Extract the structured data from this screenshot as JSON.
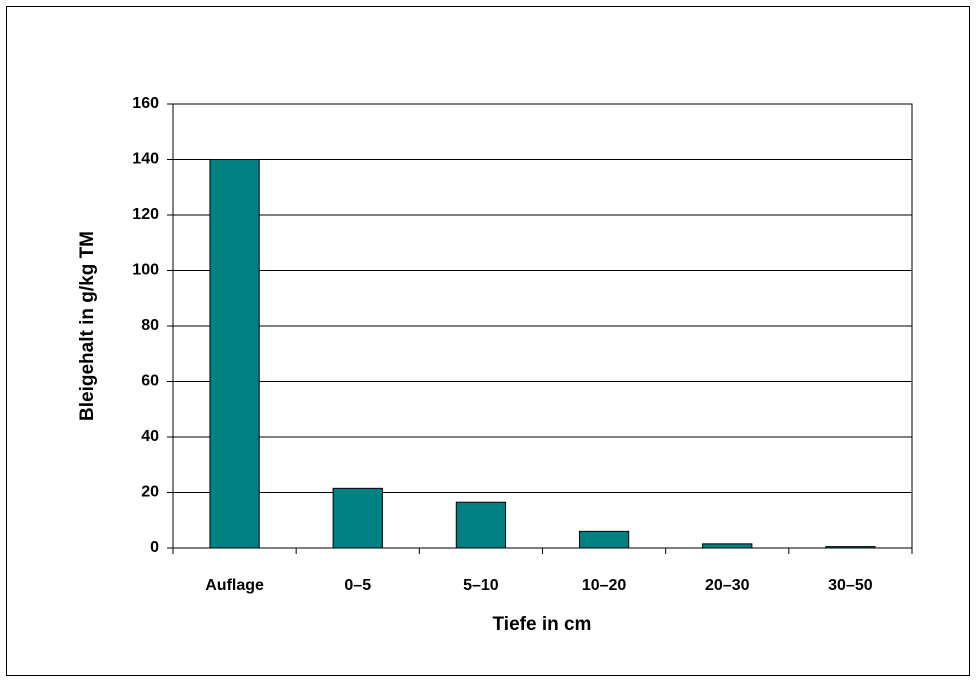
{
  "chart_data": {
    "type": "bar",
    "x_label": "Tiefe in cm",
    "y_label": "Bleigehalt in g/kg TM",
    "categories": [
      "Auflage",
      "0–5",
      "5–10",
      "10–20",
      "20–30",
      "30–50"
    ],
    "values": [
      140,
      21.5,
      16.5,
      6,
      1.5,
      0.5
    ],
    "color": "#008080",
    "ylim": [
      0,
      160
    ],
    "yticks": [
      0,
      20,
      40,
      60,
      80,
      100,
      120,
      140,
      160
    ],
    "grid": true
  }
}
